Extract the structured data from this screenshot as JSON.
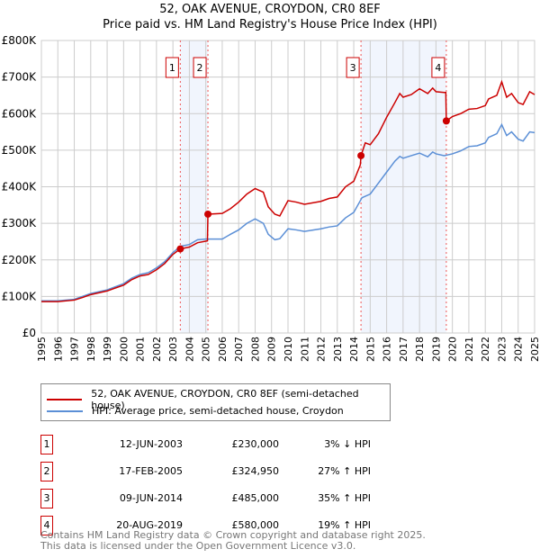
{
  "chart_data": {
    "type": "line",
    "title": "52, OAK AVENUE, CROYDON, CR0 8EF",
    "subtitle": "Price paid vs. HM Land Registry's House Price Index (HPI)",
    "xlim": [
      1995,
      2025
    ],
    "ylim": [
      0,
      800000
    ],
    "x_ticks": [
      "1995",
      "1996",
      "1997",
      "1998",
      "1999",
      "2000",
      "2001",
      "2002",
      "2003",
      "2004",
      "2005",
      "2006",
      "2007",
      "2008",
      "2009",
      "2010",
      "2011",
      "2012",
      "2013",
      "2014",
      "2015",
      "2016",
      "2017",
      "2018",
      "2019",
      "2020",
      "2021",
      "2022",
      "2023",
      "2024",
      "2025"
    ],
    "y_ticks": [
      "£0",
      "£100K",
      "£200K",
      "£300K",
      "£400K",
      "£500K",
      "£600K",
      "£700K",
      "£800K"
    ],
    "grid": true,
    "series": [
      {
        "name": "52, OAK AVENUE, CROYDON, CR0 8EF (semi-detached house)",
        "color": "#cc0000",
        "x": [
          1995,
          1996,
          1997,
          1997.5,
          1998,
          1999,
          2000,
          2000.5,
          2001,
          2001.5,
          2002,
          2002.5,
          2003,
          2003.45,
          2004,
          2004.5,
          2005.1,
          2005.13,
          2006,
          2006.5,
          2007,
          2007.5,
          2008,
          2008.5,
          2008.8,
          2009.2,
          2009.5,
          2010,
          2010.5,
          2011,
          2012,
          2012.5,
          2013,
          2013.5,
          2014,
          2014.4,
          2014.44,
          2014.7,
          2015,
          2015.5,
          2016,
          2016.5,
          2016.8,
          2017,
          2017.5,
          2018,
          2018.5,
          2018.8,
          2019,
          2019.5,
          2019.6,
          2019.63,
          2020,
          2020.5,
          2021,
          2021.5,
          2022,
          2022.2,
          2022.7,
          2023,
          2023.3,
          2023.6,
          2024,
          2024.3,
          2024.7,
          2025
        ],
        "y": [
          86,
          86,
          90,
          97,
          105,
          115,
          131,
          146,
          156,
          160,
          173,
          190,
          215,
          230,
          235,
          247,
          252,
          325,
          327,
          340,
          358,
          380,
          395,
          385,
          345,
          325,
          320,
          362,
          358,
          352,
          360,
          368,
          372,
          400,
          415,
          460,
          485,
          520,
          515,
          545,
          590,
          630,
          655,
          645,
          652,
          668,
          655,
          670,
          660,
          658,
          658,
          580,
          592,
          600,
          612,
          614,
          622,
          640,
          650,
          687,
          645,
          655,
          630,
          625,
          660,
          652
        ],
        "y_unit": "thousand GBP"
      },
      {
        "name": "HPI: Average price, semi-detached house, Croydon",
        "color": "#5b8fd6",
        "x": [
          1995,
          1996,
          1997,
          1997.5,
          1998,
          1999,
          2000,
          2000.5,
          2001,
          2001.5,
          2002,
          2002.5,
          2003,
          2003.45,
          2004,
          2004.5,
          2005,
          2006,
          2006.5,
          2007,
          2007.5,
          2008,
          2008.5,
          2008.8,
          2009.2,
          2009.5,
          2010,
          2010.5,
          2011,
          2012,
          2012.5,
          2013,
          2013.5,
          2014,
          2014.5,
          2015,
          2015.5,
          2016,
          2016.5,
          2016.8,
          2017,
          2017.5,
          2018,
          2018.5,
          2018.8,
          2019,
          2019.5,
          2020,
          2020.5,
          2021,
          2021.5,
          2022,
          2022.2,
          2022.7,
          2023,
          2023.3,
          2023.6,
          2024,
          2024.3,
          2024.7,
          2025
        ],
        "y": [
          88,
          88,
          92,
          100,
          108,
          118,
          135,
          150,
          160,
          165,
          178,
          195,
          220,
          237,
          242,
          255,
          257,
          257,
          270,
          282,
          300,
          312,
          300,
          270,
          255,
          258,
          285,
          282,
          278,
          285,
          290,
          293,
          315,
          330,
          370,
          380,
          410,
          440,
          470,
          483,
          478,
          485,
          492,
          482,
          495,
          490,
          485,
          490,
          498,
          510,
          512,
          520,
          535,
          545,
          570,
          540,
          550,
          530,
          525,
          550,
          548
        ],
        "y_unit": "thousand GBP"
      }
    ],
    "sales": [
      {
        "n": "1",
        "date": "12-JUN-2003",
        "x": 2003.45,
        "price": "£230,000",
        "value": 230,
        "hpi": "3% ↓ HPI"
      },
      {
        "n": "2",
        "date": "17-FEB-2005",
        "x": 2005.13,
        "price": "£324,950",
        "value": 325,
        "hpi": "27% ↑ HPI"
      },
      {
        "n": "3",
        "date": "09-JUN-2014",
        "x": 2014.44,
        "price": "£485,000",
        "value": 485,
        "hpi": "35% ↑ HPI"
      },
      {
        "n": "4",
        "date": "20-AUG-2019",
        "x": 2019.63,
        "price": "£580,000",
        "value": 580,
        "hpi": "19% ↑ HPI"
      }
    ],
    "shaded_ranges": [
      [
        2003.45,
        2005.13
      ],
      [
        2014.44,
        2019.63
      ]
    ],
    "legend_placement": "below"
  },
  "footer": {
    "line1": "Contains HM Land Registry data © Crown copyright and database right 2025.",
    "line2": "This data is licensed under the Open Government Licence v3.0."
  }
}
